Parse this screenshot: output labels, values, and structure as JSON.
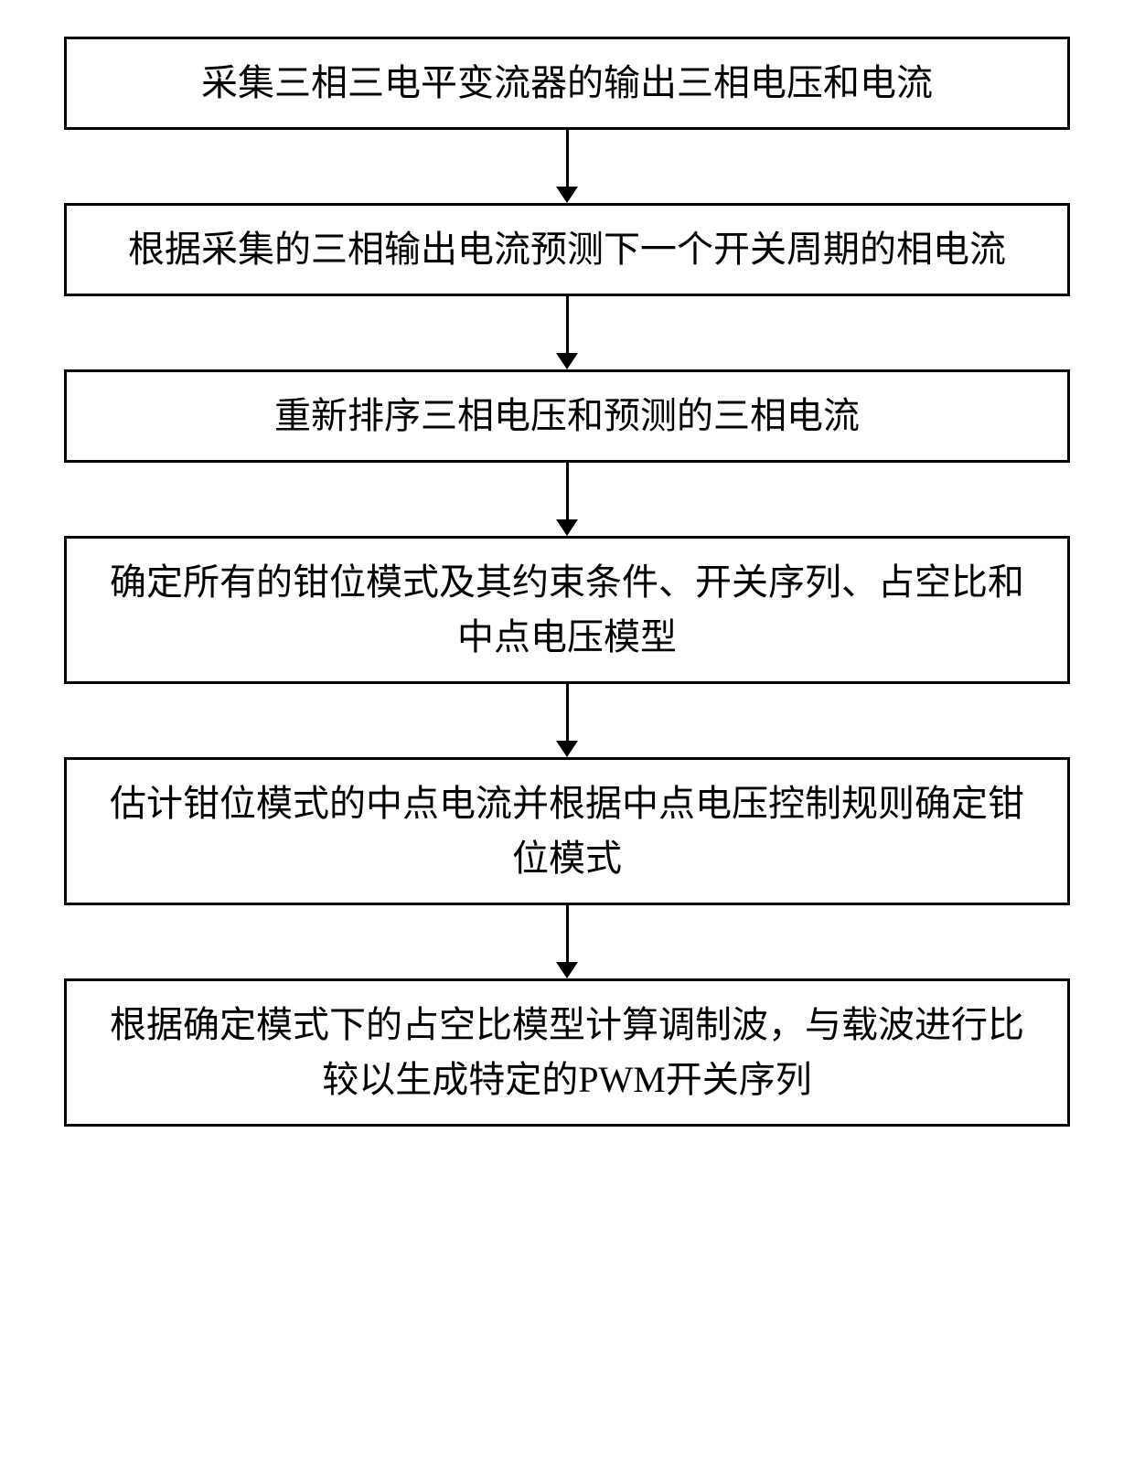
{
  "flowchart": {
    "type": "flowchart",
    "direction": "vertical",
    "background_color": "#ffffff",
    "box_border_color": "#000000",
    "box_border_width": 3,
    "box_background": "#ffffff",
    "text_color": "#000000",
    "font_size": 40,
    "font_family": "SimSun",
    "arrow_color": "#000000",
    "arrow_line_width": 3,
    "arrow_head_width": 24,
    "arrow_head_height": 18,
    "arrow_gap_height": 80,
    "steps": [
      {
        "id": "step1",
        "text": "采集三相三电平变流器的输出三相电压和电流"
      },
      {
        "id": "step2",
        "text": "根据采集的三相输出电流预测下一个开关周期的相电流"
      },
      {
        "id": "step3",
        "text": "重新排序三相电压和预测的三相电流"
      },
      {
        "id": "step4",
        "text": "确定所有的钳位模式及其约束条件、开关序列、占空比和中点电压模型"
      },
      {
        "id": "step5",
        "text": "估计钳位模式的中点电流并根据中点电压控制规则确定钳位模式"
      },
      {
        "id": "step6",
        "text": "根据确定模式下的占空比模型计算调制波，与载波进行比较以生成特定的PWM开关序列"
      }
    ]
  }
}
